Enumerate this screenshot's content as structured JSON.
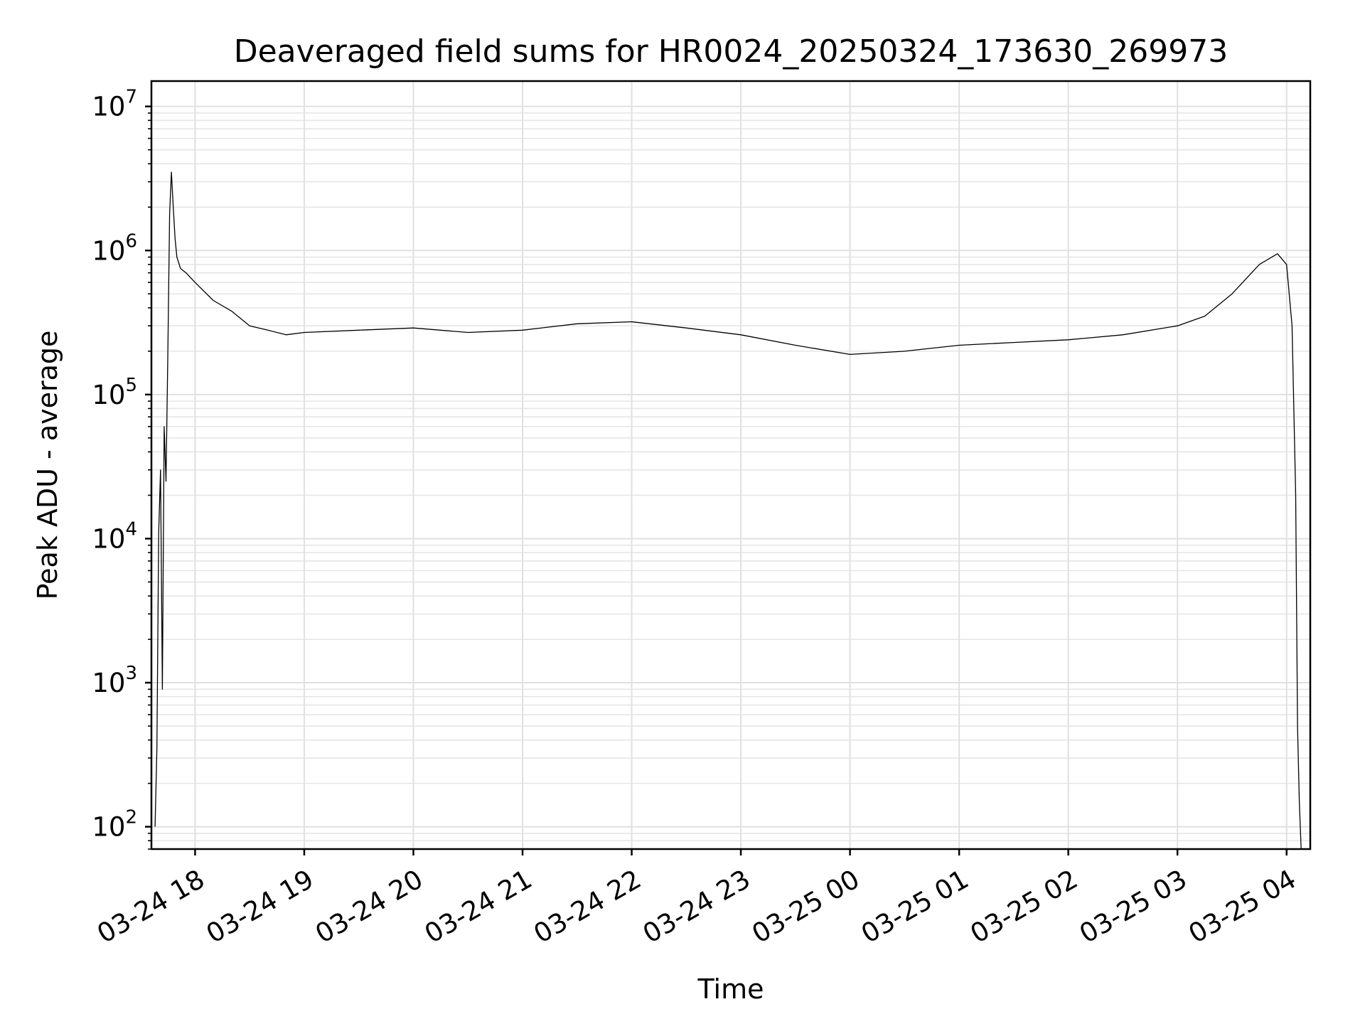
{
  "chart_data": {
    "type": "line",
    "title": "Deaveraged field sums for HR0024_20250324_173630_269973",
    "xlabel": "Time",
    "ylabel": "Peak ADU - average",
    "y_scale": "log",
    "ylim": [
      70,
      15000000
    ],
    "xlim": [
      "2025-03-24T17:36",
      "2025-03-25T04:13"
    ],
    "grid": true,
    "line_color": "#000000",
    "x_ticks": [
      {
        "label": "03-24 18",
        "time": "2025-03-24T18:00"
      },
      {
        "label": "03-24 19",
        "time": "2025-03-24T19:00"
      },
      {
        "label": "03-24 20",
        "time": "2025-03-24T20:00"
      },
      {
        "label": "03-24 21",
        "time": "2025-03-24T21:00"
      },
      {
        "label": "03-24 22",
        "time": "2025-03-24T22:00"
      },
      {
        "label": "03-24 23",
        "time": "2025-03-24T23:00"
      },
      {
        "label": "03-25 00",
        "time": "2025-03-25T00:00"
      },
      {
        "label": "03-25 01",
        "time": "2025-03-25T01:00"
      },
      {
        "label": "03-25 02",
        "time": "2025-03-25T02:00"
      },
      {
        "label": "03-25 03",
        "time": "2025-03-25T03:00"
      },
      {
        "label": "03-25 04",
        "time": "2025-03-25T04:00"
      }
    ],
    "y_ticks": [
      {
        "base": "10",
        "exp": "2",
        "value": 100
      },
      {
        "base": "10",
        "exp": "3",
        "value": 1000
      },
      {
        "base": "10",
        "exp": "4",
        "value": 10000
      },
      {
        "base": "10",
        "exp": "5",
        "value": 100000
      },
      {
        "base": "10",
        "exp": "6",
        "value": 1000000
      },
      {
        "base": "10",
        "exp": "7",
        "value": 10000000
      }
    ],
    "series": [
      {
        "x": [
          "2025-03-24T17:38",
          "2025-03-24T17:39",
          "2025-03-24T17:40",
          "2025-03-24T17:41",
          "2025-03-24T17:42",
          "2025-03-24T17:43",
          "2025-03-24T17:44",
          "2025-03-24T17:45",
          "2025-03-24T17:46",
          "2025-03-24T17:47",
          "2025-03-24T17:48",
          "2025-03-24T17:49",
          "2025-03-24T17:50",
          "2025-03-24T17:52",
          "2025-03-24T17:55",
          "2025-03-24T18:00",
          "2025-03-24T18:10",
          "2025-03-24T18:20",
          "2025-03-24T18:30",
          "2025-03-24T18:40",
          "2025-03-24T18:50",
          "2025-03-24T19:00",
          "2025-03-24T19:30",
          "2025-03-24T20:00",
          "2025-03-24T20:30",
          "2025-03-24T21:00",
          "2025-03-24T21:30",
          "2025-03-24T22:00",
          "2025-03-24T22:30",
          "2025-03-24T23:00",
          "2025-03-24T23:30",
          "2025-03-25T00:00",
          "2025-03-25T00:30",
          "2025-03-25T01:00",
          "2025-03-25T01:30",
          "2025-03-25T02:00",
          "2025-03-25T02:30",
          "2025-03-25T03:00",
          "2025-03-25T03:15",
          "2025-03-25T03:30",
          "2025-03-25T03:45",
          "2025-03-25T03:55",
          "2025-03-25T04:00",
          "2025-03-25T04:03",
          "2025-03-25T04:05",
          "2025-03-25T04:06",
          "2025-03-25T04:07",
          "2025-03-25T04:08"
        ],
        "y": [
          100,
          350,
          11000,
          30000,
          900,
          60000,
          25000,
          180000,
          1800000,
          3500000,
          2000000,
          1200000,
          900000,
          750000,
          700000,
          600000,
          450000,
          380000,
          300000,
          280000,
          260000,
          270000,
          280000,
          290000,
          270000,
          280000,
          310000,
          320000,
          290000,
          260000,
          220000,
          190000,
          200000,
          220000,
          230000,
          240000,
          260000,
          300000,
          350000,
          500000,
          800000,
          950000,
          800000,
          300000,
          20000,
          500,
          150,
          70
        ]
      }
    ]
  }
}
